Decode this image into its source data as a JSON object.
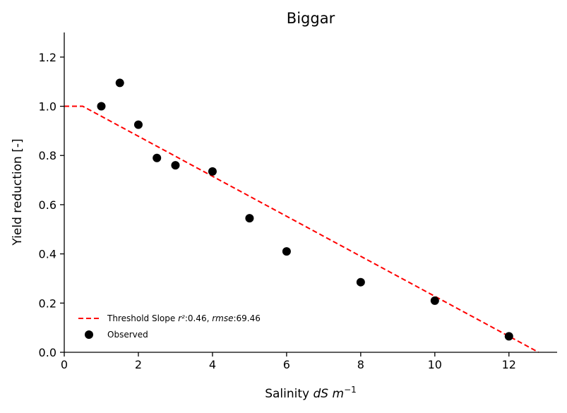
{
  "chart_data": {
    "type": "scatter",
    "title": "Biggar",
    "xlabel_prefix": "Salinity ",
    "xlabel_math": "dS m",
    "xlabel_sup": "−1",
    "ylabel": "Yield reduction [-]",
    "xlim": [
      0,
      13.3
    ],
    "ylim": [
      0,
      1.3
    ],
    "xticks": [
      "0",
      "2",
      "4",
      "6",
      "8",
      "10",
      "12"
    ],
    "yticks": [
      "0.0",
      "0.2",
      "0.4",
      "0.6",
      "0.8",
      "1.0",
      "1.2"
    ],
    "grid": false,
    "legend_position": "lower-left",
    "series": [
      {
        "name": "Observed",
        "kind": "scatter",
        "color": "#000000",
        "points": [
          {
            "x": 1.0,
            "y": 1.0
          },
          {
            "x": 1.5,
            "y": 1.095
          },
          {
            "x": 2.0,
            "y": 0.925
          },
          {
            "x": 2.5,
            "y": 0.79
          },
          {
            "x": 3.0,
            "y": 0.76
          },
          {
            "x": 4.0,
            "y": 0.735
          },
          {
            "x": 5.0,
            "y": 0.545
          },
          {
            "x": 6.0,
            "y": 0.41
          },
          {
            "x": 8.0,
            "y": 0.285
          },
          {
            "x": 10.0,
            "y": 0.21
          },
          {
            "x": 12.0,
            "y": 0.065
          }
        ]
      },
      {
        "name_prefix": "Threshold Slope ",
        "name_r2": "r²",
        "name_r2_val": ":0.46, ",
        "name_rmse": "rmse",
        "name_rmse_val": ":69.46",
        "kind": "line",
        "style": "dashed",
        "color": "#ff0000",
        "points": [
          {
            "x": 0.0,
            "y": 1.0
          },
          {
            "x": 0.5,
            "y": 1.0
          },
          {
            "x": 12.8,
            "y": 0.0
          }
        ]
      }
    ]
  }
}
